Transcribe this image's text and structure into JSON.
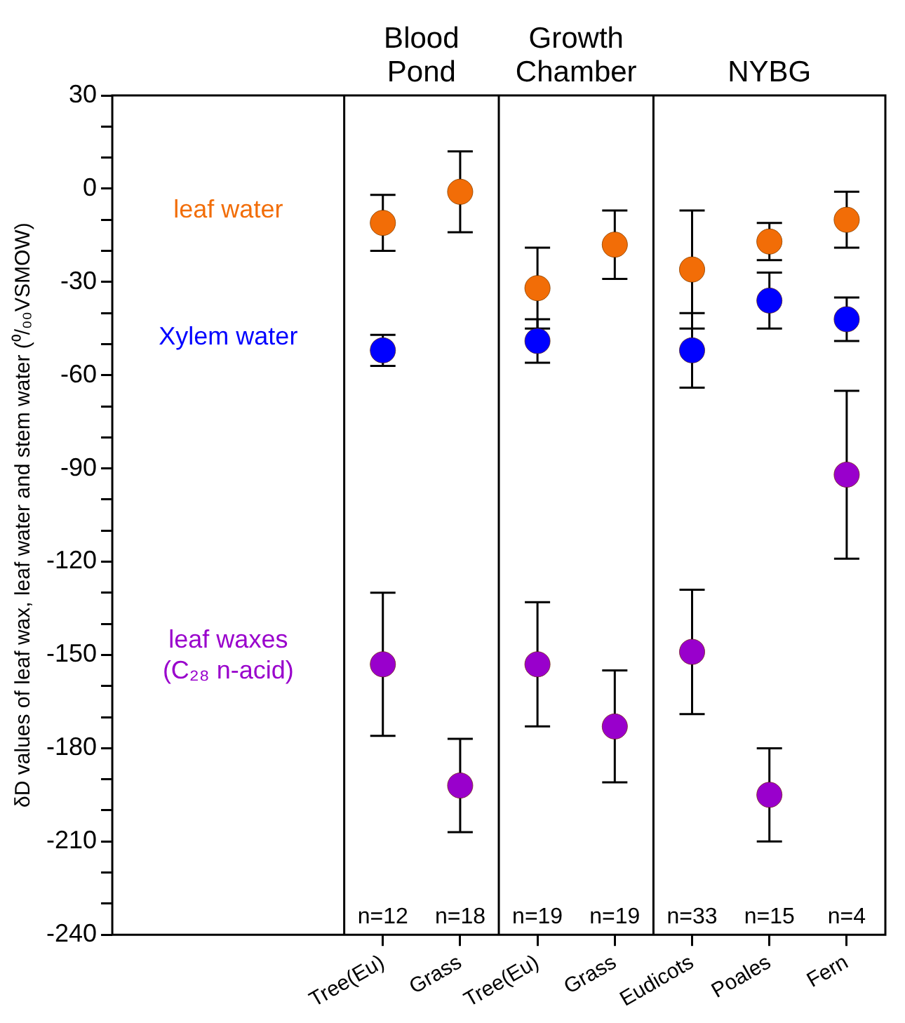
{
  "chart_data": {
    "type": "scatter",
    "ylabel": "δD values of leaf wax, leaf water and stem water (⁰/₀₀VSMOW)",
    "categories": [
      null,
      null,
      null,
      "Tree(Eu)",
      "Grass",
      "Tree(Eu)",
      "Grass",
      "Eudicots",
      "Poales",
      "Fern"
    ],
    "series": [
      {
        "name": "leaf water",
        "color": "#f26d07",
        "values": [
          null,
          null,
          null,
          -11,
          -1,
          -32,
          -18,
          -26,
          -17,
          -10
        ],
        "errors": [
          null,
          null,
          null,
          9,
          13,
          13,
          11,
          19,
          6,
          9
        ]
      },
      {
        "name": "Xylem water",
        "color": "#0000ff",
        "values": [
          null,
          null,
          null,
          -52,
          null,
          -49,
          null,
          -52,
          -36,
          -42
        ],
        "errors": [
          null,
          null,
          null,
          5,
          null,
          7,
          null,
          12,
          9,
          7
        ]
      },
      {
        "name": "leaf waxes (C₂₈ n-acid)",
        "color": "#9900cc",
        "values": [
          null,
          null,
          null,
          -153,
          -192,
          -153,
          -173,
          -149,
          -195,
          -92
        ],
        "errors": [
          null,
          null,
          null,
          23,
          15,
          20,
          18,
          20,
          15,
          27
        ]
      }
    ],
    "annotations": [
      "Blood Pond",
      "Growth Chamber",
      "NYBG",
      "n=12",
      "n=18",
      "n=19",
      "n=19",
      "n=33",
      "n=15",
      "n=4"
    ],
    "ylim": [
      -240,
      30
    ],
    "yticks": [
      -240,
      {
        "value": -230,
        "label": null
      },
      {
        "value": -220,
        "label": null
      },
      -210,
      {
        "value": -200,
        "label": null
      },
      {
        "value": -190,
        "label": null
      },
      -180,
      {
        "value": -170,
        "label": null
      },
      {
        "value": -160,
        "label": null
      },
      -150,
      {
        "value": -140,
        "label": null
      },
      {
        "value": -130,
        "label": null
      },
      -120,
      {
        "value": -110,
        "label": null
      },
      {
        "value": -100,
        "label": null
      },
      -90,
      {
        "value": -80,
        "label": null
      },
      {
        "value": -70,
        "label": null
      },
      -60,
      {
        "value": -50,
        "label": null
      },
      {
        "value": -40,
        "label": null
      },
      -30,
      {
        "value": -20,
        "label": null
      },
      {
        "value": -10,
        "label": null
      },
      0,
      {
        "value": 10,
        "label": null
      },
      {
        "value": 20,
        "label": null
      },
      30
    ],
    "marker": "circle",
    "legend": false,
    "grid": false
  }
}
